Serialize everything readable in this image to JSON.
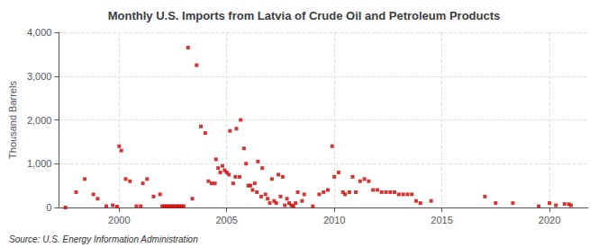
{
  "chart_data": {
    "type": "scatter",
    "title": "Monthly U.S. Imports from Latvia of Crude Oil and Petroleum Products",
    "ylabel": "Thousand Barrels",
    "annotations": [
      "Source: U.S. Energy Information Administration"
    ],
    "color": "#cc0000",
    "marker": "square",
    "grid": true,
    "xlim": [
      1997.2,
      2021.8
    ],
    "xticks": [
      2000,
      2005,
      2010,
      2015,
      2020
    ],
    "ylim": [
      0,
      4000
    ],
    "yticks": [
      0,
      {
        "value": 1000,
        "label": "1,000"
      },
      {
        "value": 2000,
        "label": "2,000"
      },
      {
        "value": 3000,
        "label": "3,000"
      },
      {
        "value": 4000,
        "label": "4,000"
      }
    ],
    "x": [
      1997.5,
      1998.0,
      1998.4,
      1998.8,
      1999.0,
      1999.4,
      1999.7,
      1999.9,
      2000.0,
      2000.1,
      2000.3,
      2000.5,
      2000.8,
      2001.0,
      2001.1,
      2001.3,
      2001.6,
      2001.9,
      2002.0,
      2002.1,
      2002.2,
      2002.3,
      2002.4,
      2002.5,
      2002.6,
      2002.7,
      2002.8,
      2002.9,
      2003.0,
      2003.2,
      2003.4,
      2003.6,
      2003.8,
      2004.0,
      2004.15,
      2004.3,
      2004.45,
      2004.5,
      2004.6,
      2004.7,
      2004.8,
      2004.9,
      2005.0,
      2005.1,
      2005.15,
      2005.3,
      2005.4,
      2005.45,
      2005.6,
      2005.65,
      2005.8,
      2005.9,
      2006.0,
      2006.1,
      2006.2,
      2006.3,
      2006.4,
      2006.45,
      2006.6,
      2006.65,
      2006.8,
      2006.9,
      2007.0,
      2007.1,
      2007.2,
      2007.3,
      2007.4,
      2007.5,
      2007.6,
      2007.7,
      2007.8,
      2007.9,
      2008.0,
      2008.1,
      2008.2,
      2008.3,
      2008.5,
      2008.6,
      2009.0,
      2009.3,
      2009.5,
      2009.7,
      2009.9,
      2010.0,
      2010.2,
      2010.4,
      2010.5,
      2010.7,
      2010.85,
      2011.0,
      2011.2,
      2011.4,
      2011.6,
      2011.8,
      2012.0,
      2012.2,
      2012.4,
      2012.6,
      2012.8,
      2013.0,
      2013.2,
      2013.4,
      2013.6,
      2013.8,
      2014.0,
      2014.5,
      2017.0,
      2017.5,
      2018.3,
      2019.5,
      2020.0,
      2020.3,
      2020.7,
      2020.9,
      2021.0
    ],
    "values": [
      0,
      350,
      650,
      300,
      200,
      30,
      50,
      20,
      1400,
      1300,
      650,
      600,
      30,
      30,
      550,
      650,
      250,
      300,
      30,
      30,
      30,
      30,
      30,
      30,
      30,
      30,
      30,
      30,
      30,
      3650,
      200,
      3250,
      1850,
      1700,
      600,
      550,
      550,
      1100,
      900,
      800,
      950,
      850,
      800,
      750,
      1750,
      550,
      700,
      1800,
      700,
      2000,
      1350,
      1000,
      500,
      500,
      400,
      550,
      350,
      1050,
      250,
      900,
      300,
      200,
      100,
      650,
      150,
      100,
      750,
      250,
      700,
      50,
      200,
      100,
      50,
      30,
      100,
      350,
      150,
      300,
      30,
      300,
      350,
      400,
      1400,
      700,
      800,
      350,
      300,
      350,
      700,
      350,
      600,
      650,
      600,
      400,
      400,
      350,
      350,
      350,
      350,
      300,
      300,
      300,
      300,
      150,
      100,
      150,
      250,
      100,
      100,
      30,
      100,
      50,
      80,
      75,
      50
    ]
  }
}
